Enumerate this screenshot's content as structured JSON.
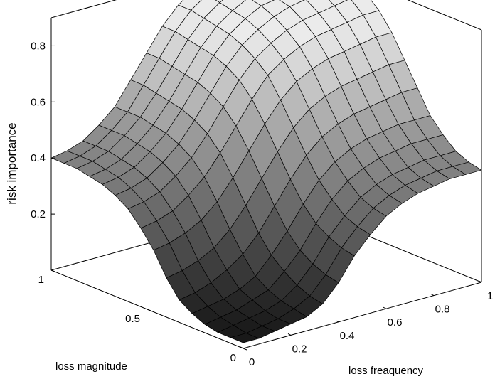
{
  "chart_data": {
    "type": "surface",
    "title": "",
    "xlabel": "loss freaquency",
    "ylabel": "loss magnitude",
    "zlabel": "risk importance",
    "xlim": [
      0,
      1
    ],
    "ylim": [
      0,
      1
    ],
    "zlim": [
      0,
      0.9
    ],
    "x_ticks": [
      0,
      0.2,
      0.4,
      0.6,
      0.8,
      1
    ],
    "y_ticks": [
      0,
      0.5,
      1
    ],
    "z_ticks": [
      0.2,
      0.4,
      0.6,
      0.8
    ],
    "x_tick_labels": [
      "0",
      "0.2",
      "0.4",
      "0.6",
      "0.8",
      "1"
    ],
    "y_tick_labels": [
      "0",
      "0.5",
      "1"
    ],
    "z_tick_labels": [
      "0.2",
      "0.4",
      "0.6",
      "0.8"
    ],
    "grid": false,
    "colormap": "gray",
    "x": [
      0,
      0.0667,
      0.1333,
      0.2,
      0.2667,
      0.3333,
      0.4,
      0.4667,
      0.5333,
      0.6,
      0.6667,
      0.7333,
      0.8,
      0.8667,
      0.9333,
      1
    ],
    "y": [
      0,
      0.0667,
      0.1333,
      0.2,
      0.2667,
      0.3333,
      0.4,
      0.4667,
      0.5333,
      0.6,
      0.6667,
      0.7333,
      0.8,
      0.8667,
      0.9333,
      1
    ],
    "z": [
      [
        0.02,
        0.02,
        0.03,
        0.04,
        0.05,
        0.08,
        0.14,
        0.22,
        0.28,
        0.33,
        0.36,
        0.38,
        0.39,
        0.4,
        0.4,
        0.4
      ],
      [
        0.02,
        0.02,
        0.03,
        0.04,
        0.06,
        0.09,
        0.15,
        0.23,
        0.29,
        0.34,
        0.37,
        0.39,
        0.4,
        0.41,
        0.41,
        0.41
      ],
      [
        0.02,
        0.03,
        0.04,
        0.05,
        0.07,
        0.11,
        0.17,
        0.25,
        0.31,
        0.36,
        0.39,
        0.41,
        0.42,
        0.43,
        0.43,
        0.43
      ],
      [
        0.03,
        0.04,
        0.05,
        0.07,
        0.09,
        0.14,
        0.2,
        0.28,
        0.35,
        0.4,
        0.43,
        0.45,
        0.46,
        0.47,
        0.47,
        0.47
      ],
      [
        0.05,
        0.06,
        0.07,
        0.09,
        0.12,
        0.18,
        0.25,
        0.33,
        0.4,
        0.45,
        0.48,
        0.5,
        0.51,
        0.52,
        0.52,
        0.52
      ],
      [
        0.08,
        0.09,
        0.11,
        0.14,
        0.18,
        0.24,
        0.32,
        0.4,
        0.47,
        0.52,
        0.55,
        0.57,
        0.58,
        0.59,
        0.6,
        0.6
      ],
      [
        0.14,
        0.15,
        0.17,
        0.2,
        0.25,
        0.32,
        0.4,
        0.48,
        0.55,
        0.6,
        0.63,
        0.65,
        0.66,
        0.67,
        0.68,
        0.68
      ],
      [
        0.22,
        0.23,
        0.25,
        0.28,
        0.33,
        0.4,
        0.48,
        0.56,
        0.63,
        0.68,
        0.71,
        0.73,
        0.74,
        0.75,
        0.76,
        0.76
      ],
      [
        0.28,
        0.29,
        0.31,
        0.35,
        0.4,
        0.47,
        0.55,
        0.63,
        0.7,
        0.74,
        0.77,
        0.79,
        0.8,
        0.81,
        0.82,
        0.82
      ],
      [
        0.33,
        0.34,
        0.36,
        0.4,
        0.45,
        0.52,
        0.6,
        0.68,
        0.74,
        0.78,
        0.81,
        0.83,
        0.84,
        0.85,
        0.86,
        0.86
      ],
      [
        0.36,
        0.37,
        0.39,
        0.43,
        0.48,
        0.55,
        0.63,
        0.71,
        0.77,
        0.81,
        0.84,
        0.86,
        0.87,
        0.88,
        0.88,
        0.88
      ],
      [
        0.38,
        0.39,
        0.41,
        0.45,
        0.5,
        0.57,
        0.65,
        0.73,
        0.79,
        0.83,
        0.86,
        0.87,
        0.88,
        0.89,
        0.89,
        0.89
      ],
      [
        0.39,
        0.4,
        0.42,
        0.46,
        0.51,
        0.58,
        0.66,
        0.74,
        0.8,
        0.84,
        0.87,
        0.88,
        0.89,
        0.89,
        0.9,
        0.9
      ],
      [
        0.4,
        0.41,
        0.43,
        0.47,
        0.52,
        0.59,
        0.67,
        0.75,
        0.81,
        0.85,
        0.88,
        0.89,
        0.89,
        0.9,
        0.9,
        0.9
      ],
      [
        0.4,
        0.41,
        0.43,
        0.47,
        0.52,
        0.6,
        0.68,
        0.76,
        0.82,
        0.86,
        0.88,
        0.89,
        0.9,
        0.9,
        0.9,
        0.9
      ],
      [
        0.4,
        0.41,
        0.43,
        0.47,
        0.52,
        0.6,
        0.68,
        0.76,
        0.82,
        0.86,
        0.88,
        0.89,
        0.9,
        0.9,
        0.9,
        0.9
      ]
    ]
  }
}
